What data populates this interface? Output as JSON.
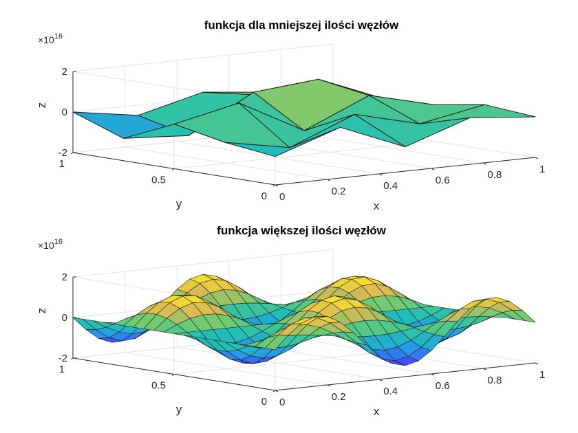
{
  "chart_data": [
    {
      "type": "surface",
      "title": "funkcja dla mniejszej ilości węzłów",
      "xlabel": "x",
      "ylabel": "y",
      "zlabel": "z",
      "z_multiplier": "×10",
      "z_exponent": "16",
      "xlim": [
        0,
        1
      ],
      "ylim": [
        0,
        1
      ],
      "zlim": [
        -2,
        2
      ],
      "xticks": [
        "0",
        "0.2",
        "0.4",
        "0.6",
        "0.8",
        "1"
      ],
      "yticks": [
        "0",
        "0.5",
        "1"
      ],
      "zticks": [
        "-2",
        "0",
        "2"
      ],
      "grid": true,
      "x": [
        0,
        0.25,
        0.5,
        0.75,
        1
      ],
      "y": [
        0,
        0.25,
        0.5,
        0.75,
        1
      ],
      "z_rows_by_y": [
        [
          -0.6,
          0.5,
          -0.8,
          0.3,
          0.0
        ],
        [
          -0.3,
          -0.9,
          0.4,
          -0.4,
          0.2
        ],
        [
          0.2,
          0.9,
          -0.8,
          0.6,
          -0.2
        ],
        [
          -0.9,
          -1.1,
          0.7,
          1.0,
          -0.3
        ],
        [
          0.0,
          -0.5,
          0.3,
          -0.2,
          0.0
        ]
      ]
    },
    {
      "type": "surface",
      "title": "funkcja większej ilości węzłów",
      "xlabel": "x",
      "ylabel": "y",
      "zlabel": "z",
      "z_multiplier": "×10",
      "z_exponent": "16",
      "xlim": [
        0,
        1
      ],
      "ylim": [
        0,
        1
      ],
      "zlim": [
        -2,
        2
      ],
      "xticks": [
        "0",
        "0.2",
        "0.4",
        "0.6",
        "0.8",
        "1"
      ],
      "yticks": [
        "0",
        "0.5",
        "1"
      ],
      "zticks": [
        "-2",
        "0",
        "2"
      ],
      "grid": true,
      "function": "z = 1.45e16 * sin(3*pi*x) * cos(3*pi*y)",
      "mesh": [
        21,
        21
      ]
    }
  ],
  "colormap": [
    "#3e26a8",
    "#4743f9",
    "#2797eb",
    "#1fbfb8",
    "#69cc73",
    "#d9ba56",
    "#fbe127",
    "#f9fb0e"
  ]
}
